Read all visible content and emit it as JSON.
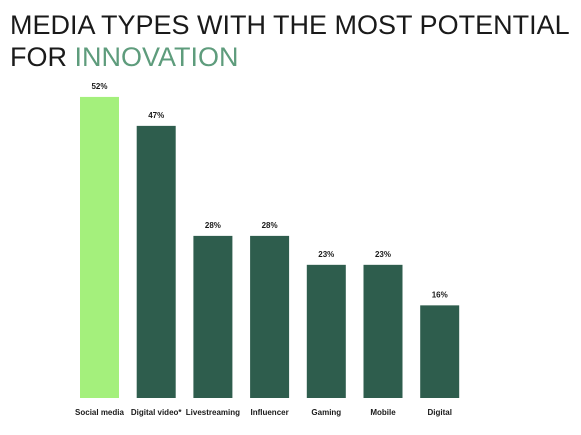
{
  "chart_data": {
    "type": "bar",
    "title": "MEDIA TYPES WITH THE MOST POTENTIAL",
    "title_line2": "FOR",
    "title_highlight": "INNOVATION",
    "categories": [
      "Social media",
      "Digital video*",
      "Livestreaming",
      "Influencer",
      "Gaming",
      "Mobile",
      "Digital"
    ],
    "values": [
      52,
      47,
      28,
      28,
      23,
      23,
      16
    ],
    "value_labels": [
      "52%",
      "47%",
      "28%",
      "28%",
      "23%",
      "23%",
      "16%"
    ],
    "colors": [
      "#a4f07c",
      "#2e5d4d",
      "#2e5d4d",
      "#2e5d4d",
      "#2e5d4d",
      "#2e5d4d",
      "#2e5d4d"
    ]
  }
}
